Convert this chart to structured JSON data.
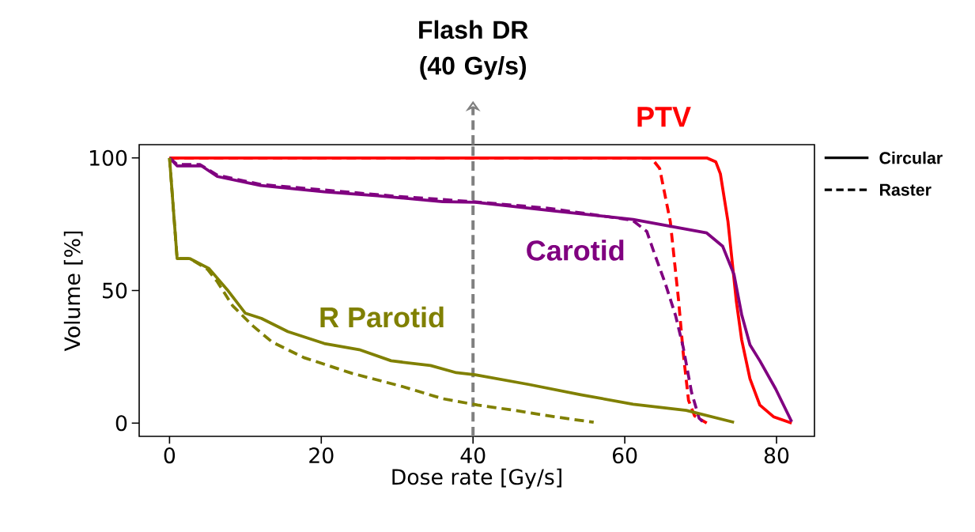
{
  "chart_data": {
    "type": "line",
    "xlabel": "Dose rate [Gy/s]",
    "ylabel": "Volume [%]",
    "xlim": [
      -4,
      85
    ],
    "ylim": [
      -5,
      105
    ],
    "xticks": [
      0,
      20,
      40,
      60,
      80
    ],
    "yticks": [
      0,
      50,
      100
    ],
    "legend": "right",
    "series": [
      {
        "name": "PTV",
        "color": "#ff0000",
        "line_style": "solid",
        "x": [
          0,
          70.8,
          72,
          72.6,
          73.6,
          74.7,
          75.4,
          76.5,
          77.8,
          79.6,
          82
        ],
        "values": [
          100,
          100,
          98.5,
          94,
          76,
          46,
          31.5,
          16.7,
          6.8,
          2.4,
          0
        ]
      },
      {
        "color": "#ff0000",
        "line_style": "dashed",
        "x": [
          0,
          63.5,
          64.6,
          66,
          67.1,
          67.7,
          68.4,
          69.2,
          70.8
        ],
        "values": [
          100,
          100,
          96,
          76,
          46,
          26.5,
          8.6,
          2.7,
          0
        ]
      },
      {
        "name": "Carotid",
        "color": "#800080",
        "line_style": "solid",
        "x": [
          0,
          1,
          4.2,
          6.3,
          12,
          20.4,
          27.4,
          36,
          40.3,
          50.7,
          61.1,
          70.8,
          72.9,
          74.4,
          75.4,
          76.5,
          77.8,
          79.9,
          82
        ],
        "values": [
          100,
          97,
          97,
          93,
          89.6,
          87.2,
          85.7,
          83.5,
          83.3,
          80,
          76.8,
          71.7,
          66.7,
          56,
          41,
          29.5,
          23.5,
          12.8,
          0.5
        ]
      },
      {
        "color": "#800080",
        "line_style": "dashed",
        "x": [
          0,
          1,
          4,
          6.3,
          12,
          20,
          30,
          40,
          50,
          61,
          62.9,
          63.9,
          65.3,
          66.7,
          67.7,
          68.8,
          69.8,
          70.5
        ],
        "values": [
          100,
          97.5,
          97.5,
          93.5,
          90,
          88,
          85.5,
          83.5,
          81,
          76.5,
          72.3,
          64,
          53,
          40.5,
          28.6,
          11.6,
          1.8,
          0
        ]
      },
      {
        "name": "R Parotid",
        "color": "#808000",
        "line_style": "solid",
        "x": [
          0,
          1,
          2.7,
          5.2,
          7.6,
          10,
          12.1,
          15.6,
          20.4,
          25,
          29.2,
          34.4,
          37.8,
          40.3,
          47.3,
          54.2,
          61.1,
          68.1,
          74.4
        ],
        "values": [
          100,
          62,
          62,
          58.3,
          50.3,
          41.4,
          39.5,
          34.5,
          30,
          27.7,
          23.5,
          21.7,
          19,
          18.2,
          14.6,
          10.7,
          7.1,
          4.8,
          0.3
        ]
      },
      {
        "color": "#808000",
        "line_style": "dashed",
        "x": [
          0,
          1,
          2.7,
          5,
          6.3,
          8.3,
          11,
          13.5,
          17.7,
          24,
          30.8,
          36,
          40.6,
          45.5,
          50.7,
          55.9
        ],
        "values": [
          100,
          62,
          62,
          58,
          53.3,
          44.3,
          36.6,
          30.6,
          24.7,
          18.8,
          13.7,
          9.2,
          6.8,
          4.8,
          2.4,
          0.3
        ]
      }
    ],
    "ref_lines": [
      {
        "axis": "x",
        "value": 40,
        "label": "Flash DR (40 Gy/s)",
        "color": "#808080",
        "line_style": "dashed"
      }
    ],
    "annotations": [
      "Circular",
      "Raster"
    ]
  }
}
